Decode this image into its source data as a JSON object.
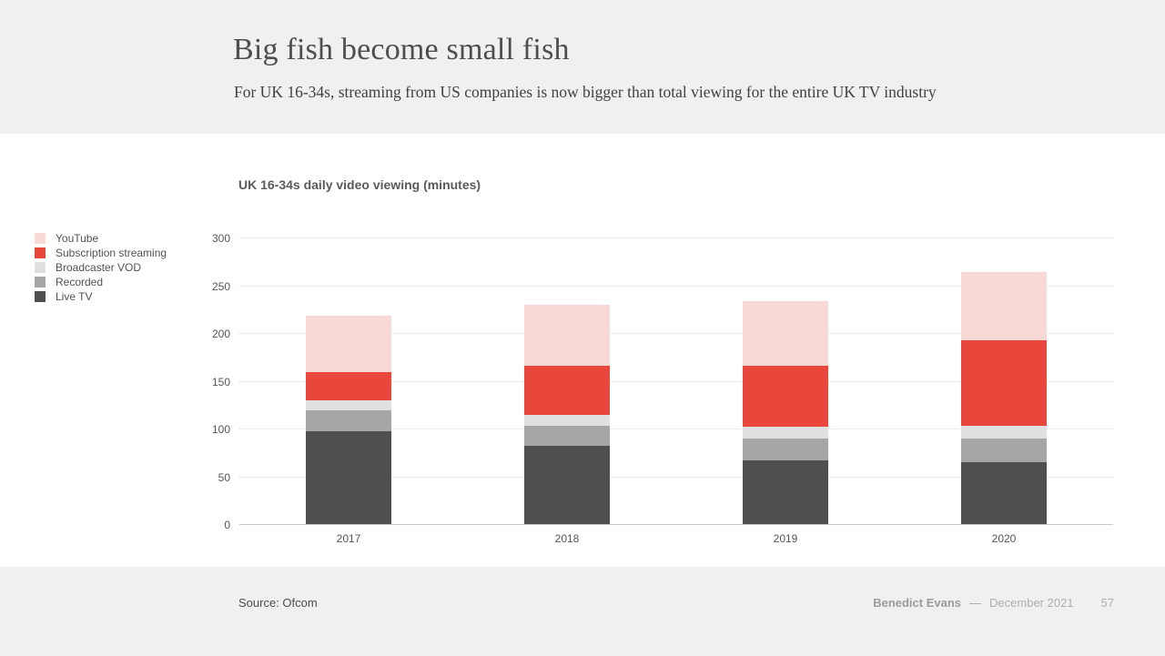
{
  "slide": {
    "title": "Big fish become small fish",
    "subtitle": "For UK 16-34s, streaming from US companies is now bigger than total viewing for the entire UK TV industry",
    "footer": {
      "source": "Source: Ofcom",
      "author": "Benedict Evans",
      "separator": "—",
      "date": "December 2021",
      "page": "57"
    }
  },
  "chart_data": {
    "type": "bar",
    "stacked": true,
    "title": "UK 16-34s daily video viewing (minutes)",
    "categories": [
      "2017",
      "2018",
      "2019",
      "2020"
    ],
    "series": [
      {
        "name": "Live TV",
        "color": "#4f4f4f",
        "values": [
          97,
          82,
          67,
          65
        ]
      },
      {
        "name": "Recorded",
        "color": "#a6a6a6",
        "values": [
          22,
          21,
          23,
          25
        ]
      },
      {
        "name": "Broadcaster VOD",
        "color": "#e0e0e0",
        "values": [
          11,
          11,
          12,
          13
        ]
      },
      {
        "name": "Subscription streaming",
        "color": "#e9473c",
        "values": [
          29,
          52,
          64,
          89
        ]
      },
      {
        "name": "YouTube",
        "color": "#f8d9d5",
        "values": [
          59,
          64,
          67,
          72
        ]
      }
    ],
    "totals": [
      218,
      230,
      233,
      264
    ],
    "legend_order": [
      "YouTube",
      "Subscription streaming",
      "Broadcaster VOD",
      "Recorded",
      "Live TV"
    ],
    "legend_position": "left",
    "xlabel": "",
    "ylabel": "minutes",
    "y_axis": {
      "min": 0,
      "max": 300,
      "step": 50,
      "ticks": [
        0,
        50,
        100,
        150,
        200,
        250,
        300
      ]
    },
    "grid": "horizontal-dotted"
  }
}
